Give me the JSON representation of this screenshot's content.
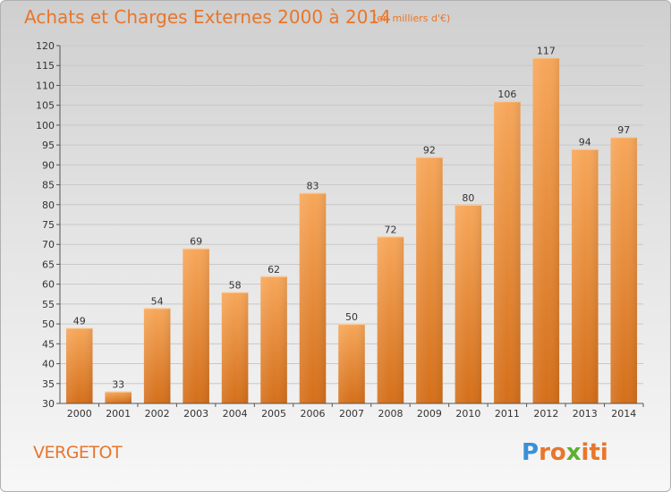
{
  "header": {
    "title": "Achats et Charges Externes 2000 à 2014",
    "unit": "(en milliers d'€)"
  },
  "footer": {
    "commune": "VERGETOT",
    "logo_letters": [
      "P",
      "r",
      "o",
      "x",
      "i",
      "t",
      "i"
    ],
    "logo_colors": [
      "#3a8fd8",
      "#e8762b",
      "#e8762b",
      "#5cb030",
      "#e8762b",
      "#e8762b",
      "#e8762b"
    ]
  },
  "colors": {
    "bar_light": "#f7a75a",
    "bar_dark": "#d46f1a",
    "grid": "#c8c8c8"
  },
  "chart_data": {
    "type": "bar",
    "title": "Achats et Charges Externes 2000 à 2014",
    "subtitle": "(en milliers d'€)",
    "xlabel": "",
    "ylabel": "",
    "categories": [
      "2000",
      "2001",
      "2002",
      "2003",
      "2004",
      "2005",
      "2006",
      "2007",
      "2008",
      "2009",
      "2010",
      "2011",
      "2012",
      "2013",
      "2014"
    ],
    "values": [
      49,
      33,
      54,
      69,
      58,
      62,
      83,
      50,
      72,
      92,
      80,
      106,
      117,
      94,
      97
    ],
    "ylim": [
      30,
      120
    ],
    "yticks": [
      30,
      35,
      40,
      45,
      50,
      55,
      60,
      65,
      70,
      75,
      80,
      85,
      90,
      95,
      100,
      105,
      110,
      115,
      120
    ],
    "grid": true,
    "legend": "none"
  }
}
